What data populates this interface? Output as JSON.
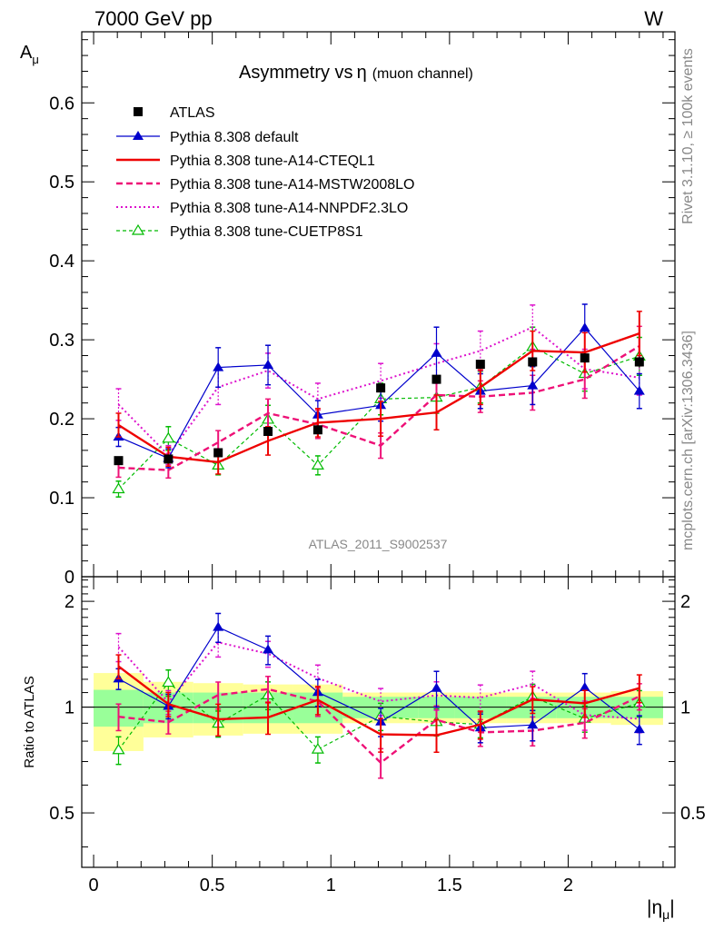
{
  "header": {
    "left": "7000 GeV pp",
    "right": "W"
  },
  "side_text": {
    "rivet": "Rivet 3.1.10, ≥ 100k events",
    "mcplots": "mcplots.cern.ch [arXiv:1306.3436]"
  },
  "watermark": "ATLAS_2011_S9002537",
  "colors": {
    "atlas": "#000000",
    "default": "#0000cc",
    "cteql1": "#ee0000",
    "mstw": "#ee1177",
    "nnpdf": "#dd11cc",
    "cuetp": "#00bb00",
    "band_green": "#99ff99",
    "band_yellow": "#ffff99"
  },
  "chart_data": {
    "type": "line",
    "title_main": "Asymmetry vs",
    "title_eta": "η",
    "title_sub": "(muon channel)",
    "ylabel_main": "A",
    "ylabel_main_sub": "μ",
    "ylabel_ratio": "Ratio to ATLAS",
    "xlabel_pre": "|η",
    "xlabel_sub": "μ",
    "xlabel_post": "|",
    "xlim": [
      -0.05,
      2.45
    ],
    "ylim_main": [
      0,
      0.69
    ],
    "ylim_ratio": [
      0.35,
      2.35
    ],
    "x_ticks": [
      {
        "v": 0,
        "label": "0"
      },
      {
        "v": 0.5,
        "label": "0.5"
      },
      {
        "v": 1,
        "label": "1"
      },
      {
        "v": 1.5,
        "label": "1.5"
      },
      {
        "v": 2,
        "label": "2"
      }
    ],
    "y_ticks_main": [
      {
        "v": 0,
        "label": "0"
      },
      {
        "v": 0.1,
        "label": "0.1"
      },
      {
        "v": 0.2,
        "label": "0.2"
      },
      {
        "v": 0.3,
        "label": "0.3"
      },
      {
        "v": 0.4,
        "label": "0.4"
      },
      {
        "v": 0.5,
        "label": "0.5"
      },
      {
        "v": 0.6,
        "label": "0.6"
      }
    ],
    "y_ticks_ratio": [
      {
        "v": 0.5,
        "label": "0.5"
      },
      {
        "v": 1,
        "label": "1"
      },
      {
        "v": 2,
        "label": "2"
      }
    ],
    "x": [
      0.105,
      0.315,
      0.525,
      0.735,
      0.945,
      1.21,
      1.445,
      1.63,
      1.85,
      2.07,
      2.3
    ],
    "bin_edges": [
      0,
      0.21,
      0.42,
      0.63,
      0.84,
      1.05,
      1.37,
      1.52,
      1.74,
      1.95,
      2.18,
      2.4
    ],
    "atlas": {
      "name": "ATLAS",
      "values": [
        0.147,
        0.149,
        0.157,
        0.184,
        0.186,
        0.239,
        0.25,
        0.269,
        0.272,
        0.277,
        0.272
      ],
      "errors": [
        0.004,
        0.004,
        0.005,
        0.004,
        0.005,
        0.005,
        0.005,
        0.005,
        0.006,
        0.006,
        0.007
      ]
    },
    "band_inner": [
      0.12,
      0.1,
      0.1,
      0.1,
      0.1,
      0.07,
      0.07,
      0.07,
      0.07,
      0.07,
      0.07
    ],
    "band_outer": [
      0.25,
      0.18,
      0.17,
      0.16,
      0.16,
      0.1,
      0.1,
      0.1,
      0.1,
      0.1,
      0.11
    ],
    "series": [
      {
        "key": "default",
        "name": "Pythia 8.308 default",
        "style": "solid",
        "width": 1.2,
        "marker": "triangle-filled",
        "values": [
          0.177,
          0.15,
          0.265,
          0.268,
          0.205,
          0.217,
          0.283,
          0.235,
          0.242,
          0.315,
          0.235
        ],
        "errors": [
          0.012,
          0.012,
          0.025,
          0.025,
          0.018,
          0.02,
          0.033,
          0.022,
          0.024,
          0.03,
          0.022
        ]
      },
      {
        "key": "cteql1",
        "name": "Pythia 8.308 tune-A14-CTEQL1",
        "style": "solid",
        "width": 2.4,
        "marker": "none",
        "values": [
          0.192,
          0.152,
          0.145,
          0.172,
          0.195,
          0.2,
          0.208,
          0.24,
          0.286,
          0.284,
          0.308
        ],
        "errors": [
          0.015,
          0.012,
          0.015,
          0.018,
          0.018,
          0.022,
          0.022,
          0.022,
          0.025,
          0.025,
          0.028
        ]
      },
      {
        "key": "mstw",
        "name": "Pythia 8.308 tune-A14-MSTW2008LO",
        "style": "dashed",
        "width": 2.4,
        "marker": "none",
        "values": [
          0.138,
          0.135,
          0.17,
          0.207,
          0.193,
          0.166,
          0.23,
          0.228,
          0.233,
          0.25,
          0.292
        ],
        "errors": [
          0.012,
          0.01,
          0.015,
          0.018,
          0.018,
          0.016,
          0.022,
          0.02,
          0.022,
          0.024,
          0.025
        ]
      },
      {
        "key": "nnpdf",
        "name": "Pythia 8.308 tune-A14-NNPDF2.3LO",
        "style": "dotted",
        "width": 2.0,
        "marker": "none",
        "values": [
          0.218,
          0.154,
          0.24,
          0.261,
          0.225,
          0.248,
          0.27,
          0.286,
          0.316,
          0.263,
          0.252
        ],
        "errors": [
          0.02,
          0.012,
          0.022,
          0.022,
          0.02,
          0.022,
          0.025,
          0.025,
          0.028,
          0.025,
          0.022
        ]
      },
      {
        "key": "cuetp",
        "name": "Pythia 8.308 tune-CUETP8S1",
        "style": "dashed-thin",
        "width": 1.2,
        "marker": "triangle-open",
        "values": [
          0.111,
          0.175,
          0.141,
          0.199,
          0.141,
          0.225,
          0.227,
          0.24,
          0.291,
          0.257,
          0.279
        ],
        "errors": [
          0.01,
          0.015,
          0.012,
          0.018,
          0.012,
          0.02,
          0.02,
          0.02,
          0.025,
          0.022,
          0.024
        ]
      }
    ]
  }
}
